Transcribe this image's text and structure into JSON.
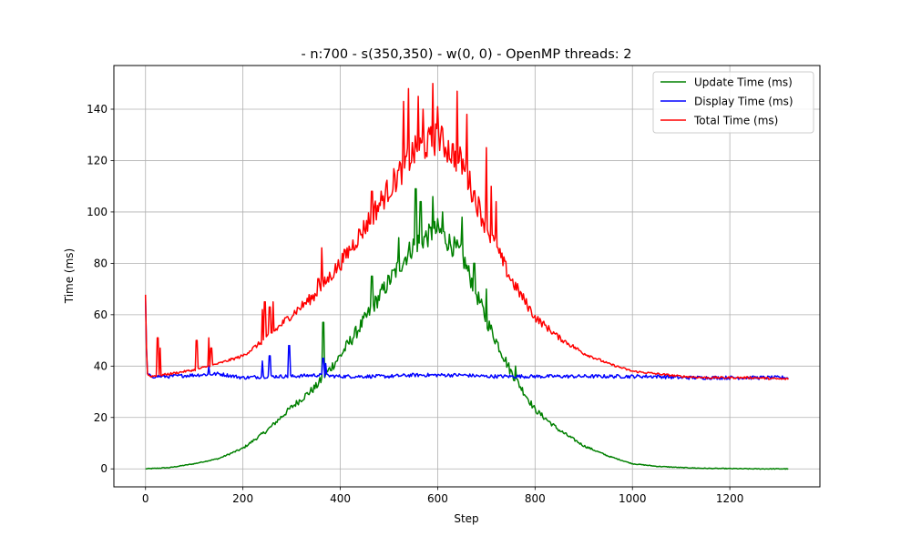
{
  "chart_data": {
    "type": "line",
    "title": "- n:700 - s(350,350) - w(0, 0) - OpenMP threads: 2",
    "xlabel": "Step",
    "ylabel": "Time (ms)",
    "xlim": [
      -65,
      1385
    ],
    "ylim": [
      -7,
      157
    ],
    "xticks": [
      0,
      200,
      400,
      600,
      800,
      1000,
      1200
    ],
    "yticks": [
      0,
      20,
      40,
      60,
      80,
      100,
      120,
      140
    ],
    "grid": true,
    "legend_position": "top-right",
    "series": [
      {
        "name": "Update Time (ms)",
        "color": "#008000",
        "x": [
          0,
          50,
          100,
          150,
          200,
          250,
          300,
          350,
          400,
          450,
          500,
          550,
          600,
          650,
          700,
          750,
          800,
          850,
          900,
          950,
          1000,
          1050,
          1100,
          1150,
          1200,
          1250,
          1300,
          1320
        ],
        "y": [
          0,
          0.5,
          2,
          4,
          8,
          15,
          24,
          32,
          44,
          58,
          73,
          87,
          93,
          83,
          58,
          38,
          23,
          15,
          9,
          5,
          2,
          1,
          0.5,
          0.2,
          0.1,
          0,
          0,
          0
        ]
      },
      {
        "name": "Display Time (ms)",
        "color": "#0000ff",
        "x": [
          0,
          3,
          10,
          50,
          100,
          150,
          200,
          250,
          300,
          350,
          400,
          450,
          500,
          550,
          600,
          650,
          700,
          750,
          800,
          850,
          900,
          950,
          1000,
          1050,
          1100,
          1150,
          1200,
          1250,
          1300,
          1320
        ],
        "y": [
          67,
          37,
          36,
          36,
          36.5,
          37,
          35.5,
          36,
          36,
          36.5,
          36,
          36,
          36,
          36.5,
          36.5,
          36.5,
          36,
          36,
          36,
          36,
          36,
          36,
          36,
          36,
          35.5,
          35.5,
          35.5,
          35.5,
          35.5,
          35.5
        ]
      },
      {
        "name": "Total Time (ms)",
        "color": "#ff0000",
        "x": [
          0,
          3,
          10,
          50,
          100,
          150,
          200,
          250,
          300,
          350,
          400,
          450,
          500,
          550,
          600,
          650,
          700,
          750,
          800,
          850,
          900,
          950,
          1000,
          1050,
          1100,
          1150,
          1200,
          1250,
          1300,
          1320
        ],
        "y": [
          67,
          37,
          36,
          37,
          38.5,
          41,
          44,
          51,
          60,
          68,
          80,
          94,
          109,
          123,
          129,
          119,
          94,
          74,
          59,
          51,
          45,
          41,
          38,
          37,
          36,
          35.5,
          35.5,
          35.5,
          35,
          35
        ]
      }
    ],
    "spikes": [
      {
        "series": 2,
        "x": [
          25,
          30,
          105,
          130,
          135,
          240,
          245,
          255,
          262,
          355,
          362,
          370,
          465,
          530,
          540,
          560,
          570,
          590,
          600,
          640,
          660,
          700,
          710,
          720
        ],
        "y": [
          51,
          47,
          50,
          51,
          47,
          62,
          65,
          63,
          65,
          74,
          86,
          72,
          108,
          143,
          148,
          145,
          140,
          150,
          141,
          147,
          138,
          125,
          110,
          104
        ]
      },
      {
        "series": 0,
        "x": [
          365,
          465,
          520,
          555,
          565,
          590,
          610,
          650,
          675,
          700,
          760
        ],
        "y": [
          57,
          75,
          90,
          109,
          104,
          106,
          100,
          98,
          80,
          70,
          40
        ]
      },
      {
        "series": 1,
        "x": [
          130,
          240,
          255,
          295,
          365,
          370
        ],
        "y": [
          40,
          42,
          44,
          48,
          43,
          41
        ]
      }
    ]
  }
}
